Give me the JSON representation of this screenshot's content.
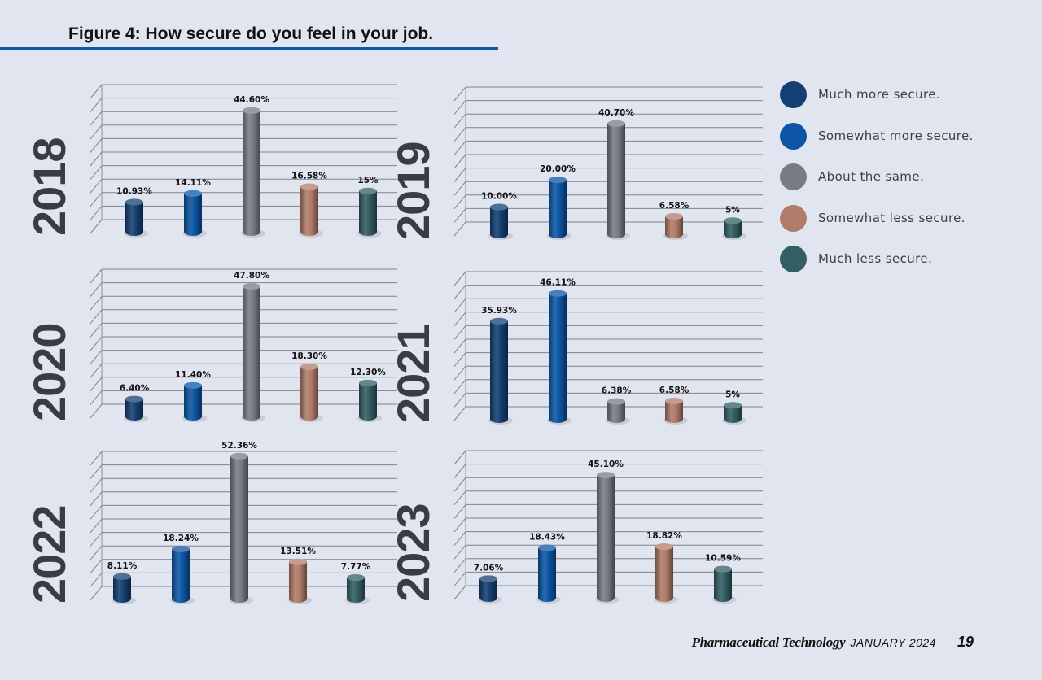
{
  "title": "Figure 4: How secure do you feel in your job.",
  "footer": {
    "publication": "Pharmaceutical Technology",
    "date": "JANUARY 2024",
    "page": "19"
  },
  "legend": [
    {
      "label": "Much more secure.",
      "color": "#143f72"
    },
    {
      "label": "Somewhat more secure.",
      "color": "#0c56a5"
    },
    {
      "label": "About the same.",
      "color": "#777b85"
    },
    {
      "label": "Somewhat less secure.",
      "color": "#b17b69"
    },
    {
      "label": "Much less secure.",
      "color": "#335e63"
    }
  ],
  "chart_data": [
    {
      "type": "bar",
      "title": "2018",
      "categories": [
        "Much more secure.",
        "Somewhat more secure.",
        "About the same.",
        "Somewhat less secure.",
        "Much less secure."
      ],
      "values": [
        10.93,
        14.11,
        44.6,
        16.58,
        15
      ],
      "labels": [
        "10.93%",
        "14.11%",
        "44.60%",
        "16.58%",
        "15%"
      ]
    },
    {
      "type": "bar",
      "title": "2019",
      "categories": [
        "Much more secure.",
        "Somewhat more secure.",
        "About the same.",
        "Somewhat less secure.",
        "Much less secure."
      ],
      "values": [
        10.0,
        20.0,
        40.7,
        6.58,
        5
      ],
      "labels": [
        "10.00%",
        "20.00%",
        "40.70%",
        "6.58%",
        "5%"
      ]
    },
    {
      "type": "bar",
      "title": "2020",
      "categories": [
        "Much more secure.",
        "Somewhat more secure.",
        "About the same.",
        "Somewhat less secure.",
        "Much less secure."
      ],
      "values": [
        6.4,
        11.4,
        47.8,
        18.3,
        12.3
      ],
      "labels": [
        "6.40%",
        "11.40%",
        "47.80%",
        "18.30%",
        "12.30%"
      ]
    },
    {
      "type": "bar",
      "title": "2021",
      "categories": [
        "Much more secure.",
        "Somewhat more secure.",
        "About the same.",
        "Somewhat less secure.",
        "Much less secure."
      ],
      "values": [
        35.93,
        46.11,
        6.38,
        6.58,
        5
      ],
      "labels": [
        "35.93%",
        "46.11%",
        "6.38%",
        "6.58%",
        "5%"
      ]
    },
    {
      "type": "bar",
      "title": "2022",
      "categories": [
        "Much more secure.",
        "Somewhat more secure.",
        "About the same.",
        "Somewhat less secure.",
        "Much less secure."
      ],
      "values": [
        8.11,
        18.24,
        52.36,
        13.51,
        7.77
      ],
      "labels": [
        "8.11%",
        "18.24%",
        "52.36%",
        "13.51%",
        "7.77%"
      ]
    },
    {
      "type": "bar",
      "title": "2023",
      "categories": [
        "Much more secure.",
        "Somewhat more secure.",
        "About the same.",
        "Somewhat less secure.",
        "Much less secure."
      ],
      "values": [
        7.06,
        18.43,
        45.1,
        18.82,
        10.59
      ],
      "labels": [
        "7.06%",
        "18.43%",
        "45.10%",
        "18.82%",
        "10.59%"
      ]
    }
  ]
}
